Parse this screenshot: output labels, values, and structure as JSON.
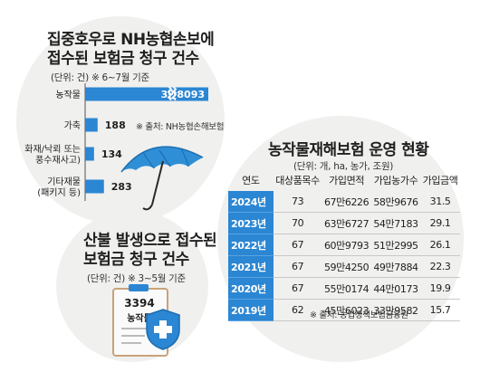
{
  "chart_data": [
    {
      "type": "bar",
      "title": "집중호우로 NH농협손보에 접수된 보험금 청구 건수",
      "subtitle": "(단위: 건) ※ 6~7월 기준",
      "categories": [
        "농작물",
        "가축",
        "화재/낙뢰 또는 풍수재사고",
        "기타재물 (패키지 등)"
      ],
      "category_lines": [
        [
          "농작물"
        ],
        [
          "가축"
        ],
        [
          "화재/낙뢰 또는",
          "풍수재사고)"
        ],
        [
          "기타재물",
          "(패키지 등)"
        ]
      ],
      "values": [
        38093,
        188,
        134,
        283
      ],
      "value_labels": [
        "3만8093",
        "188",
        "134",
        "283"
      ],
      "axis_break": true,
      "source": "※ 출처: NH농협손해보험"
    },
    {
      "type": "table",
      "title": "농작물재해보험 운영 현황",
      "subtitle": "(단위: 개, ha, 농가, 조원)",
      "columns": [
        "연도",
        "대상품목수",
        "가입면적",
        "가입농가수",
        "가입금액"
      ],
      "rows": [
        [
          "2024년",
          "73",
          "67만6226",
          "58만9676",
          "31.5"
        ],
        [
          "2023년",
          "70",
          "63만6727",
          "54만7183",
          "29.1"
        ],
        [
          "2022년",
          "67",
          "60만9793",
          "51만2995",
          "26.1"
        ],
        [
          "2021년",
          "67",
          "59만4250",
          "49만7884",
          "22.3"
        ],
        [
          "2020년",
          "67",
          "55만0174",
          "44만0173",
          "19.9"
        ],
        [
          "2019년",
          "62",
          "45만6023",
          "33만9582",
          "15.7"
        ]
      ],
      "source": "※ 출처: 농업정책보험금융원"
    }
  ],
  "wildfire": {
    "title_line1": "산불 발생으로 접수된",
    "title_line2": "보험금 청구 건수",
    "subtitle": "(단위: 건) ※ 3~5월 기준",
    "clipboard_value": "3394",
    "clipboard_label": "농작물"
  },
  "colors": {
    "bar": "#2b86d3",
    "table_year_bg": "#2b86d3",
    "circle_bg": "#f0f0ee",
    "umbrella": "#2f8fd6",
    "shield": "#2b86d3"
  }
}
